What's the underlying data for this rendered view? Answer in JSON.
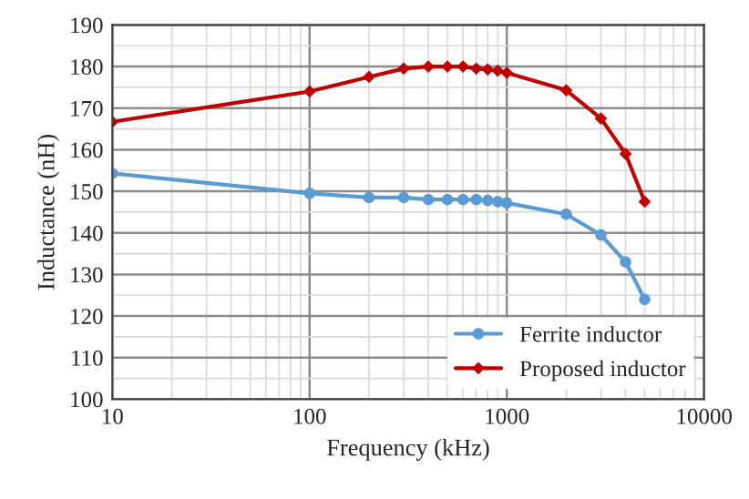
{
  "chart_data": {
    "type": "line",
    "xlabel": "Frequency (kHz)",
    "ylabel": "Inductance (nH)",
    "log": "x",
    "x": [
      10,
      100,
      200,
      300,
      400,
      500,
      600,
      700,
      800,
      900,
      1000,
      2000,
      3000,
      4000,
      5000
    ],
    "series": [
      {
        "name": "Ferrite inductor",
        "color": "#5b9bd5",
        "marker": "circle",
        "values": [
          154.3,
          149.5,
          148.5,
          148.5,
          148,
          148,
          148,
          148,
          147.8,
          147.5,
          147.2,
          144.5,
          139.5,
          133,
          124
        ]
      },
      {
        "name": "Proposed inductor",
        "color": "#c00000",
        "marker": "diamond",
        "values": [
          166.7,
          174,
          177.5,
          179.5,
          180,
          180,
          180,
          179.5,
          179.3,
          179,
          178.5,
          174.3,
          167.5,
          159,
          147.5
        ]
      }
    ],
    "xlim": [
      10,
      10000
    ],
    "xticks": [
      10,
      100,
      1000,
      10000
    ],
    "ylim": [
      100,
      190
    ],
    "yticks": [
      100,
      110,
      120,
      130,
      140,
      150,
      160,
      170,
      180,
      190
    ],
    "grid": true,
    "legend": "bottom right"
  }
}
